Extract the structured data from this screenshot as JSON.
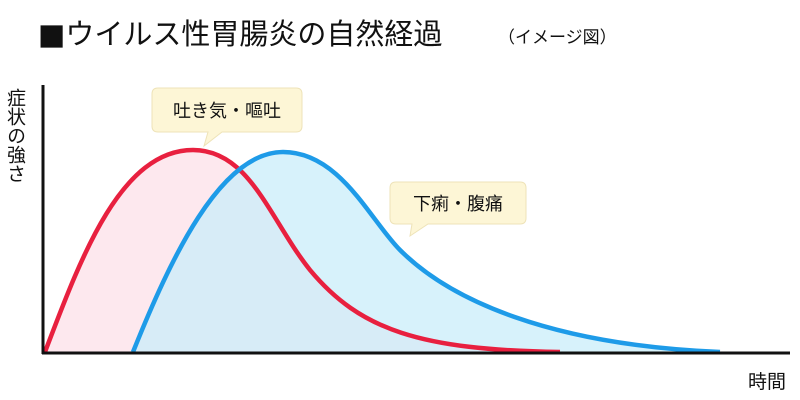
{
  "header": {
    "title": "■ウイルス性胃腸炎の自然経過",
    "subtitle": "（イメージ図）"
  },
  "axes": {
    "y_label": "症状の強さ",
    "x_label": "時間"
  },
  "callouts": [
    {
      "label": "吐き気・嘔吐"
    },
    {
      "label": "下痢・腹痛"
    }
  ]
}
